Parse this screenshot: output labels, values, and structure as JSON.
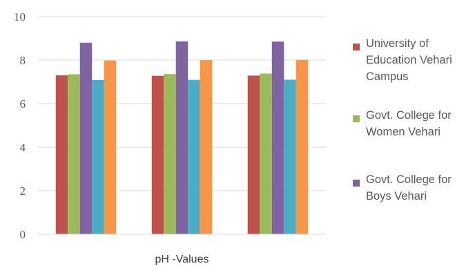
{
  "chart_data": {
    "type": "bar",
    "xlabel": "pH -Values",
    "ylim": [
      0,
      10
    ],
    "yticks": [
      0,
      2,
      4,
      6,
      8,
      10
    ],
    "grid": true,
    "legend_position": "right",
    "groups": 3,
    "series": [
      {
        "name": "University of Education Vehari Campus",
        "color": "#C0504D",
        "values": [
          7.3,
          7.28,
          7.29
        ]
      },
      {
        "name": "Govt. College for Women Vehari",
        "color": "#9BBB59",
        "values": [
          7.35,
          7.36,
          7.38
        ]
      },
      {
        "name": "Govt. College for Boys Vehari",
        "color": "#8064A2",
        "values": [
          8.8,
          8.86,
          8.85
        ]
      },
      {
        "name": "",
        "color": "#4BACC6",
        "values": [
          7.08,
          7.09,
          7.1
        ]
      },
      {
        "name": "",
        "color": "#F79646",
        "values": [
          7.98,
          8.0,
          8.01
        ]
      }
    ],
    "legend": [
      {
        "series": 0,
        "lines": [
          "University of",
          "Education Vehari",
          "Campus"
        ]
      },
      {
        "series": 1,
        "lines": [
          "Govt. College for",
          "Women Vehari"
        ]
      },
      {
        "series": 2,
        "lines": [
          "Govt. College for",
          "Boys Vehari"
        ]
      }
    ]
  }
}
